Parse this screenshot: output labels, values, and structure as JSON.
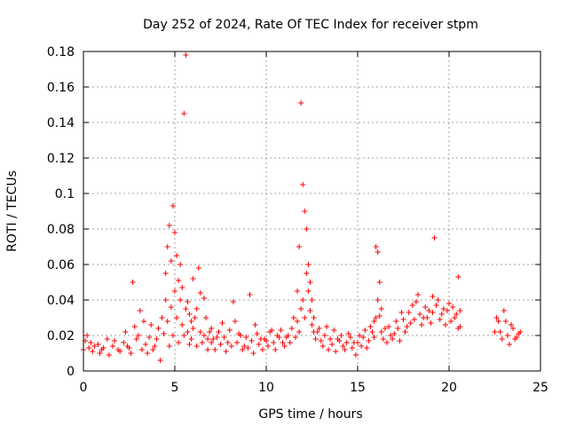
{
  "chart_data": {
    "type": "scatter",
    "title": "Day 252 of 2024, Rate Of TEC Index for receiver stpm",
    "xlabel": "GPS time / hours",
    "ylabel": "ROTI / TECUs",
    "xlim": [
      0,
      25
    ],
    "ylim": [
      0,
      0.18
    ],
    "xticks": [
      0,
      5,
      10,
      15,
      20,
      25
    ],
    "xtick_labels": [
      "0",
      "5",
      "10",
      "15",
      "20",
      "25"
    ],
    "yticks": [
      0,
      0.02,
      0.04,
      0.06,
      0.08,
      0.1,
      0.12,
      0.14,
      0.16,
      0.18
    ],
    "ytick_labels": [
      "0",
      "0.02",
      "0.04",
      "0.06",
      "0.08",
      "0.1",
      "0.12",
      "0.14",
      "0.16",
      "0.18"
    ],
    "grid": true,
    "marker": "+",
    "color": "#ff0000",
    "series": [
      {
        "x": [
          0.1,
          0.3,
          0.5,
          0.8,
          1.0,
          1.3,
          1.6,
          1.9,
          2.2,
          2.5,
          2.7,
          2.9,
          3.1,
          3.4,
          3.6,
          3.9,
          4.1,
          4.3,
          4.5,
          4.6,
          4.7,
          4.8,
          4.9,
          5.0,
          5.1,
          5.2,
          5.3,
          5.4,
          5.5,
          5.6,
          5.7,
          5.8,
          5.9,
          6.0,
          6.2,
          6.4,
          6.6,
          6.8,
          7.0,
          7.3,
          7.6,
          7.9,
          8.2,
          8.5,
          8.8,
          9.1,
          9.4,
          9.7,
          10.0,
          10.3,
          10.6,
          10.9,
          11.2,
          11.5,
          11.7,
          11.8,
          11.9,
          12.0,
          12.1,
          12.2,
          12.3,
          12.4,
          12.5,
          12.6,
          12.8,
          13.0,
          13.3,
          13.6,
          13.9,
          14.2,
          14.5,
          14.8,
          15.1,
          15.4,
          15.7,
          15.9,
          16.0,
          16.1,
          16.2,
          16.3,
          16.5,
          16.8,
          17.1,
          17.4,
          17.7,
          18.0,
          18.3,
          18.6,
          18.9,
          19.1,
          19.2,
          19.4,
          19.7,
          20.0,
          20.3,
          20.5,
          20.6,
          22.6,
          22.8,
          23.0,
          23.2,
          23.4,
          23.6,
          23.8
        ],
        "y": [
          0.017,
          0.013,
          0.011,
          0.015,
          0.012,
          0.018,
          0.014,
          0.012,
          0.016,
          0.013,
          0.05,
          0.018,
          0.034,
          0.015,
          0.019,
          0.014,
          0.024,
          0.03,
          0.055,
          0.07,
          0.082,
          0.062,
          0.093,
          0.078,
          0.065,
          0.051,
          0.06,
          0.047,
          0.145,
          0.178,
          0.039,
          0.032,
          0.028,
          0.052,
          0.035,
          0.022,
          0.041,
          0.018,
          0.024,
          0.019,
          0.027,
          0.016,
          0.039,
          0.021,
          0.014,
          0.043,
          0.026,
          0.018,
          0.017,
          0.023,
          0.02,
          0.016,
          0.02,
          0.03,
          0.045,
          0.07,
          0.151,
          0.105,
          0.09,
          0.08,
          0.06,
          0.05,
          0.04,
          0.03,
          0.022,
          0.017,
          0.025,
          0.015,
          0.018,
          0.014,
          0.021,
          0.016,
          0.02,
          0.023,
          0.025,
          0.028,
          0.07,
          0.067,
          0.05,
          0.035,
          0.024,
          0.02,
          0.028,
          0.033,
          0.025,
          0.037,
          0.043,
          0.03,
          0.034,
          0.042,
          0.075,
          0.04,
          0.035,
          0.038,
          0.03,
          0.053,
          0.025,
          0.03,
          0.022,
          0.034,
          0.02,
          0.026,
          0.018,
          0.021
        ],
        "noise_points": [
          [
            0.0,
            0.012
          ],
          [
            0.2,
            0.02
          ],
          [
            0.4,
            0.016
          ],
          [
            0.6,
            0.014
          ],
          [
            0.9,
            0.01
          ],
          [
            1.1,
            0.013
          ],
          [
            1.4,
            0.009
          ],
          [
            1.7,
            0.017
          ],
          [
            2.0,
            0.011
          ],
          [
            2.3,
            0.022
          ],
          [
            2.4,
            0.014
          ],
          [
            2.6,
            0.01
          ],
          [
            2.8,
            0.025
          ],
          [
            3.0,
            0.02
          ],
          [
            3.2,
            0.012
          ],
          [
            3.3,
            0.028
          ],
          [
            3.5,
            0.01
          ],
          [
            3.7,
            0.026
          ],
          [
            3.8,
            0.012
          ],
          [
            4.0,
            0.018
          ],
          [
            4.2,
            0.006
          ],
          [
            4.4,
            0.021
          ],
          [
            4.5,
            0.04
          ],
          [
            4.6,
            0.028
          ],
          [
            4.7,
            0.014
          ],
          [
            4.8,
            0.036
          ],
          [
            4.9,
            0.02
          ],
          [
            5.0,
            0.045
          ],
          [
            5.1,
            0.03
          ],
          [
            5.2,
            0.016
          ],
          [
            5.3,
            0.04
          ],
          [
            5.4,
            0.026
          ],
          [
            5.5,
            0.02
          ],
          [
            5.6,
            0.035
          ],
          [
            5.7,
            0.022
          ],
          [
            5.8,
            0.015
          ],
          [
            5.9,
            0.018
          ],
          [
            6.0,
            0.024
          ],
          [
            6.1,
            0.03
          ],
          [
            6.2,
            0.014
          ],
          [
            6.3,
            0.058
          ],
          [
            6.4,
            0.044
          ],
          [
            6.5,
            0.016
          ],
          [
            6.6,
            0.02
          ],
          [
            6.7,
            0.03
          ],
          [
            6.8,
            0.012
          ],
          [
            6.9,
            0.022
          ],
          [
            7.0,
            0.016
          ],
          [
            7.1,
            0.018
          ],
          [
            7.2,
            0.012
          ],
          [
            7.4,
            0.022
          ],
          [
            7.5,
            0.015
          ],
          [
            7.7,
            0.019
          ],
          [
            7.8,
            0.011
          ],
          [
            8.0,
            0.023
          ],
          [
            8.1,
            0.014
          ],
          [
            8.3,
            0.028
          ],
          [
            8.4,
            0.016
          ],
          [
            8.6,
            0.02
          ],
          [
            8.7,
            0.012
          ],
          [
            8.9,
            0.019
          ],
          [
            9.0,
            0.013
          ],
          [
            9.2,
            0.017
          ],
          [
            9.3,
            0.01
          ],
          [
            9.5,
            0.021
          ],
          [
            9.6,
            0.015
          ],
          [
            9.8,
            0.012
          ],
          [
            9.9,
            0.018
          ],
          [
            10.1,
            0.014
          ],
          [
            10.2,
            0.022
          ],
          [
            10.4,
            0.016
          ],
          [
            10.5,
            0.012
          ],
          [
            10.7,
            0.019
          ],
          [
            10.8,
            0.023
          ],
          [
            11.0,
            0.014
          ],
          [
            11.1,
            0.019
          ],
          [
            11.3,
            0.016
          ],
          [
            11.4,
            0.024
          ],
          [
            11.6,
            0.019
          ],
          [
            11.7,
            0.028
          ],
          [
            11.8,
            0.022
          ],
          [
            11.9,
            0.035
          ],
          [
            12.0,
            0.04
          ],
          [
            12.1,
            0.03
          ],
          [
            12.2,
            0.055
          ],
          [
            12.3,
            0.045
          ],
          [
            12.4,
            0.034
          ],
          [
            12.5,
            0.026
          ],
          [
            12.6,
            0.022
          ],
          [
            12.7,
            0.018
          ],
          [
            12.9,
            0.024
          ],
          [
            13.1,
            0.014
          ],
          [
            13.2,
            0.02
          ],
          [
            13.4,
            0.012
          ],
          [
            13.5,
            0.018
          ],
          [
            13.7,
            0.023
          ],
          [
            13.8,
            0.011
          ],
          [
            14.0,
            0.017
          ],
          [
            14.1,
            0.02
          ],
          [
            14.3,
            0.012
          ],
          [
            14.4,
            0.016
          ],
          [
            14.6,
            0.019
          ],
          [
            14.7,
            0.013
          ],
          [
            14.9,
            0.009
          ],
          [
            15.0,
            0.016
          ],
          [
            15.2,
            0.014
          ],
          [
            15.3,
            0.019
          ],
          [
            15.5,
            0.013
          ],
          [
            15.6,
            0.017
          ],
          [
            15.8,
            0.022
          ],
          [
            15.9,
            0.019
          ],
          [
            16.0,
            0.03
          ],
          [
            16.1,
            0.04
          ],
          [
            16.2,
            0.031
          ],
          [
            16.3,
            0.022
          ],
          [
            16.4,
            0.018
          ],
          [
            16.6,
            0.016
          ],
          [
            16.7,
            0.025
          ],
          [
            16.9,
            0.018
          ],
          [
            17.0,
            0.021
          ],
          [
            17.2,
            0.024
          ],
          [
            17.3,
            0.017
          ],
          [
            17.5,
            0.029
          ],
          [
            17.6,
            0.022
          ],
          [
            17.8,
            0.033
          ],
          [
            17.9,
            0.027
          ],
          [
            18.1,
            0.029
          ],
          [
            18.2,
            0.039
          ],
          [
            18.4,
            0.032
          ],
          [
            18.5,
            0.026
          ],
          [
            18.7,
            0.036
          ],
          [
            18.8,
            0.03
          ],
          [
            19.0,
            0.027
          ],
          [
            19.1,
            0.033
          ],
          [
            19.3,
            0.037
          ],
          [
            19.5,
            0.029
          ],
          [
            19.6,
            0.032
          ],
          [
            19.8,
            0.026
          ],
          [
            19.9,
            0.034
          ],
          [
            20.1,
            0.028
          ],
          [
            20.2,
            0.036
          ],
          [
            20.4,
            0.032
          ],
          [
            20.5,
            0.024
          ],
          [
            20.6,
            0.034
          ],
          [
            22.5,
            0.022
          ],
          [
            22.7,
            0.028
          ],
          [
            22.9,
            0.018
          ],
          [
            23.1,
            0.028
          ],
          [
            23.3,
            0.015
          ],
          [
            23.5,
            0.024
          ],
          [
            23.7,
            0.019
          ],
          [
            23.9,
            0.022
          ]
        ]
      }
    ]
  }
}
